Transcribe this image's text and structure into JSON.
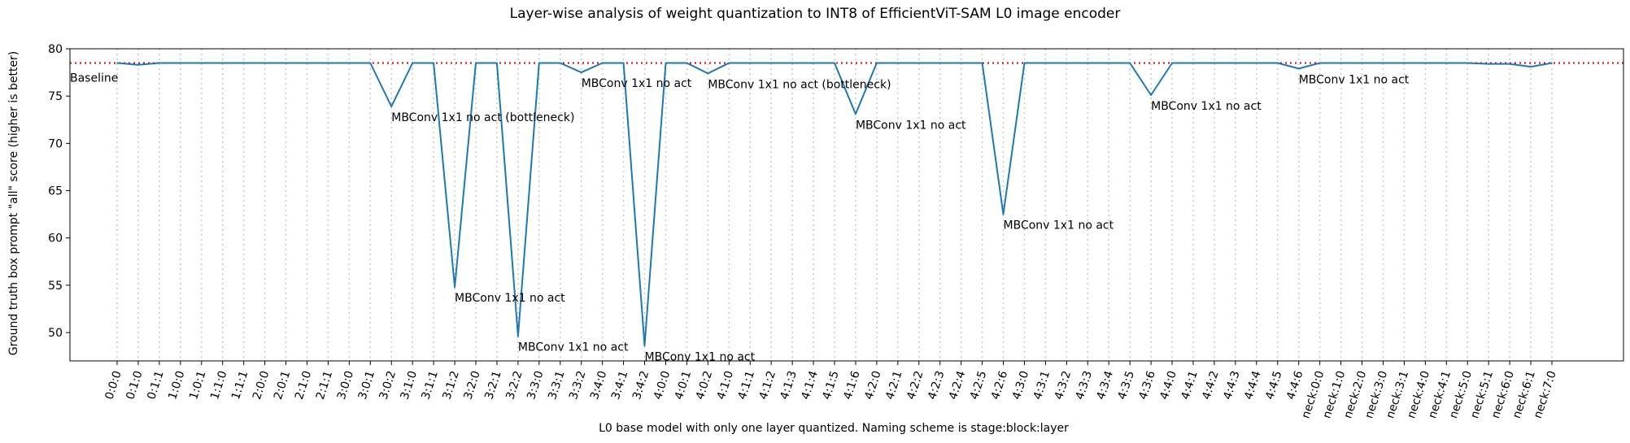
{
  "chart_data": {
    "type": "line",
    "title": "Layer-wise analysis of weight quantization to INT8 of EfficientViT-SAM L0 image encoder",
    "xlabel": "L0 base model with only one layer quantized. Naming scheme is stage:block:layer",
    "ylabel": "Ground truth box prompt \"all\" score (higher is better)",
    "ylim": [
      47,
      80
    ],
    "yticks": [
      50,
      55,
      60,
      65,
      70,
      75,
      80
    ],
    "grid": "vertical dotted at each category",
    "colors": {
      "line": "#1f77b4",
      "baseline": "#e00000"
    },
    "baseline": {
      "value": 78.5,
      "label": "Baseline"
    },
    "categories": [
      "0:0:0",
      "0:1:0",
      "0:1:1",
      "1:0:0",
      "1:0:1",
      "1:1:0",
      "1:1:1",
      "2:0:0",
      "2:0:1",
      "2:1:0",
      "2:1:1",
      "3:0:0",
      "3:0:1",
      "3:0:2",
      "3:1:0",
      "3:1:1",
      "3:1:2",
      "3:2:0",
      "3:2:1",
      "3:2:2",
      "3:3:0",
      "3:3:1",
      "3:3:2",
      "3:4:0",
      "3:4:1",
      "3:4:2",
      "4:0:0",
      "4:0:1",
      "4:0:2",
      "4:1:0",
      "4:1:1",
      "4:1:2",
      "4:1:3",
      "4:1:4",
      "4:1:5",
      "4:1:6",
      "4:2:0",
      "4:2:1",
      "4:2:2",
      "4:2:3",
      "4:2:4",
      "4:2:5",
      "4:2:6",
      "4:3:0",
      "4:3:1",
      "4:3:2",
      "4:3:3",
      "4:3:4",
      "4:3:5",
      "4:3:6",
      "4:4:0",
      "4:4:1",
      "4:4:2",
      "4:4:3",
      "4:4:4",
      "4:4:5",
      "4:4:6",
      "neck:0:0",
      "neck:1:0",
      "neck:2:0",
      "neck:3:0",
      "neck:3:1",
      "neck:4:0",
      "neck:4:1",
      "neck:5:0",
      "neck:5:1",
      "neck:6:0",
      "neck:6:1",
      "neck:7:0"
    ],
    "series": [
      {
        "values": [
          78.5,
          78.3,
          78.5,
          78.5,
          78.5,
          78.5,
          78.5,
          78.5,
          78.5,
          78.5,
          78.5,
          78.5,
          78.5,
          73.9,
          78.5,
          78.5,
          54.8,
          78.5,
          78.5,
          49.6,
          78.5,
          78.5,
          77.5,
          78.5,
          78.5,
          48.6,
          78.5,
          78.5,
          77.4,
          78.5,
          78.5,
          78.5,
          78.5,
          78.5,
          78.5,
          73.1,
          78.5,
          78.5,
          78.5,
          78.5,
          78.5,
          78.5,
          62.5,
          78.5,
          78.5,
          78.5,
          78.5,
          78.5,
          78.5,
          75.1,
          78.5,
          78.5,
          78.5,
          78.5,
          78.5,
          78.5,
          77.9,
          78.5,
          78.5,
          78.5,
          78.5,
          78.5,
          78.5,
          78.5,
          78.5,
          78.4,
          78.4,
          78.1,
          78.5
        ]
      }
    ],
    "annotations": [
      {
        "category": "3:0:2",
        "value": 73.9,
        "text": "MBConv 1x1 no act (bottleneck)"
      },
      {
        "category": "3:1:2",
        "value": 54.8,
        "text": "MBConv 1x1 no act"
      },
      {
        "category": "3:2:2",
        "value": 49.6,
        "text": "MBConv 1x1 no act"
      },
      {
        "category": "3:3:2",
        "value": 77.5,
        "text": "MBConv 1x1 no act"
      },
      {
        "category": "3:4:2",
        "value": 48.6,
        "text": "MBConv 1x1 no act"
      },
      {
        "category": "4:0:2",
        "value": 77.4,
        "text": "MBConv 1x1 no act (bottleneck)"
      },
      {
        "category": "4:1:6",
        "value": 73.1,
        "text": "MBConv 1x1 no act"
      },
      {
        "category": "4:2:6",
        "value": 62.5,
        "text": "MBConv 1x1 no act"
      },
      {
        "category": "4:3:6",
        "value": 75.1,
        "text": "MBConv 1x1 no act"
      },
      {
        "category": "4:4:6",
        "value": 77.9,
        "text": "MBConv 1x1 no act"
      }
    ]
  }
}
